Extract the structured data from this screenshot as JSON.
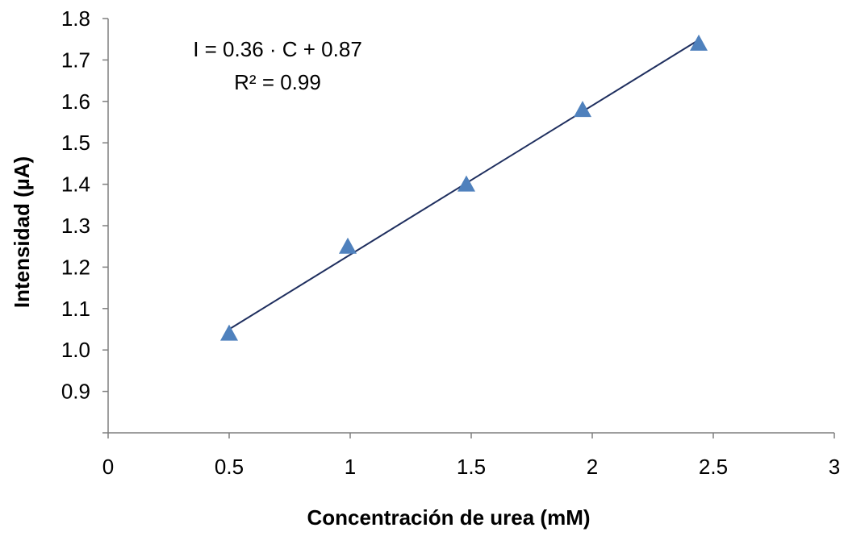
{
  "chart_data": {
    "type": "scatter",
    "title": "",
    "xlabel": "Concentración de urea (mM)",
    "ylabel": "Intensidad (µA)",
    "xlim": [
      0,
      3
    ],
    "ylim": [
      0.8,
      1.8
    ],
    "x_ticks": [
      "0",
      "0.5",
      "1",
      "1.5",
      "2",
      "2.5",
      "3"
    ],
    "y_ticks": [
      "0.9",
      "1.0",
      "1.1",
      "1.2",
      "1.3",
      "1.4",
      "1.5",
      "1.6",
      "1.7",
      "1.8"
    ],
    "grid": false,
    "legend": false,
    "series": [
      {
        "x": [
          0.5,
          0.99,
          1.48,
          1.96,
          2.44
        ],
        "y": [
          1.04,
          1.25,
          1.4,
          1.58,
          1.74
        ],
        "marker": "triangle",
        "color": "#4f81bd"
      }
    ],
    "trendline": {
      "slope": 0.36,
      "intercept": 0.87,
      "x_range": [
        0.5,
        2.44
      ],
      "color": "#1f2f5f"
    },
    "annotations": {
      "equation": "I = 0.36 · C + 0.87",
      "r_squared": "R² = 0.99"
    }
  }
}
